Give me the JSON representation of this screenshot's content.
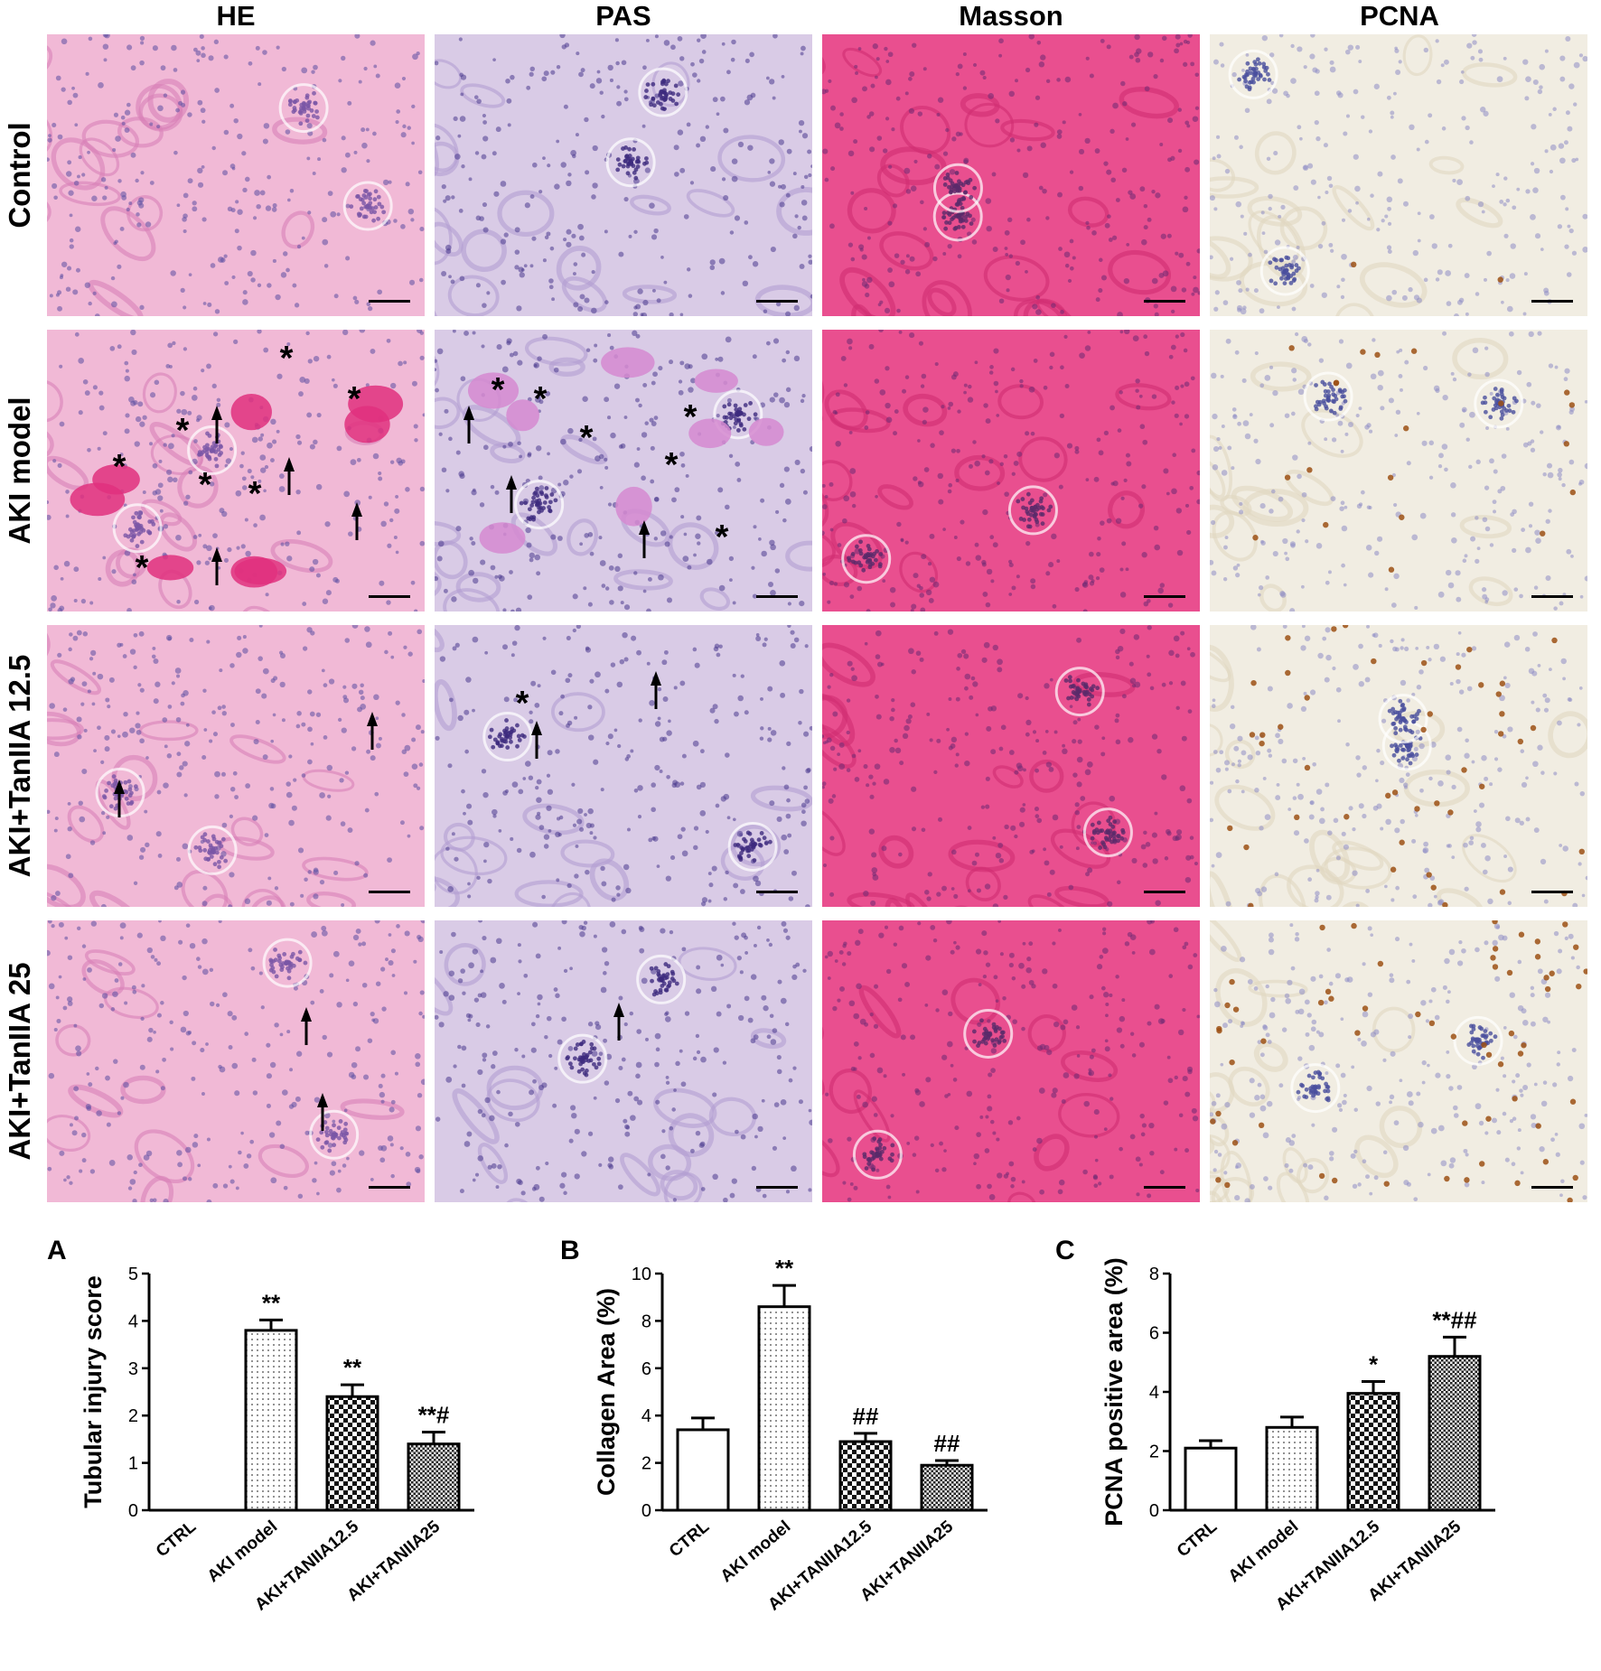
{
  "columns": [
    "HE",
    "PAS",
    "Masson",
    "PCNA"
  ],
  "rows": [
    "Control",
    "AKI model",
    "AKI+TanIIA 12.5",
    "AKI+TanIIA 25"
  ],
  "stains": {
    "HE": {
      "bg": "#f1b9d6",
      "cell": "#d880b8",
      "nuc": "#5b4fa2",
      "glom": "#7b56a6"
    },
    "PAS": {
      "bg": "#d9cbe6",
      "cell": "#b39fd2",
      "nuc": "#4a3a8e",
      "glom": "#3d2a7e"
    },
    "Masson": {
      "bg": "#e94f8f",
      "cell": "#d12d72",
      "nuc": "#6b2a72",
      "glom": "#5a2a6a"
    },
    "PCNA": {
      "bg": "#f1ede2",
      "cell": "#e1d7c2",
      "nuc": "#8e8cc4",
      "glom": "#4a4f9e",
      "positive": "#9c5014"
    }
  },
  "markers": {
    "asterisk": "*",
    "arrow": "arrow-up"
  },
  "charts": [
    {
      "letter": "A",
      "chart_data": {
        "type": "bar",
        "categories": [
          "CTRL",
          "AKI model",
          "AKI+TANIIA12.5",
          "AKI+TANIIA25"
        ],
        "values": [
          0,
          3.8,
          2.4,
          1.4
        ],
        "errors": [
          0,
          0.22,
          0.25,
          0.25
        ],
        "annotations": [
          "",
          "**",
          "**",
          "**#"
        ],
        "ylabel": "Tubular injury score",
        "ylim": [
          0,
          5
        ],
        "yticks": [
          0,
          1,
          2,
          3,
          4,
          5
        ],
        "patterns": [
          "white",
          "dots",
          "checker",
          "fine-checker"
        ]
      }
    },
    {
      "letter": "B",
      "chart_data": {
        "type": "bar",
        "categories": [
          "CTRL",
          "AKI model",
          "AKI+TANIIA12.5",
          "AKI+TANIIA25"
        ],
        "values": [
          3.4,
          8.6,
          2.9,
          1.9
        ],
        "errors": [
          0.5,
          0.9,
          0.35,
          0.2
        ],
        "annotations": [
          "",
          "**",
          "##",
          "##"
        ],
        "ylabel": "Collagen Area (%)",
        "ylim": [
          0,
          10
        ],
        "yticks": [
          0,
          2,
          4,
          6,
          8,
          10
        ],
        "patterns": [
          "white",
          "dots",
          "checker",
          "fine-checker"
        ]
      }
    },
    {
      "letter": "C",
      "chart_data": {
        "type": "bar",
        "categories": [
          "CTRL",
          "AKI model",
          "AKI+TANIIA12.5",
          "AKI+TANIIA25"
        ],
        "values": [
          2.1,
          2.8,
          3.95,
          5.2
        ],
        "errors": [
          0.25,
          0.35,
          0.4,
          0.65
        ],
        "annotations": [
          "",
          "",
          "*",
          "**##"
        ],
        "ylabel": "PCNA positive area (%)",
        "ylim": [
          0,
          8
        ],
        "yticks": [
          0,
          2,
          4,
          6,
          8
        ],
        "patterns": [
          "white",
          "dots",
          "checker",
          "fine-checker"
        ]
      }
    }
  ]
}
